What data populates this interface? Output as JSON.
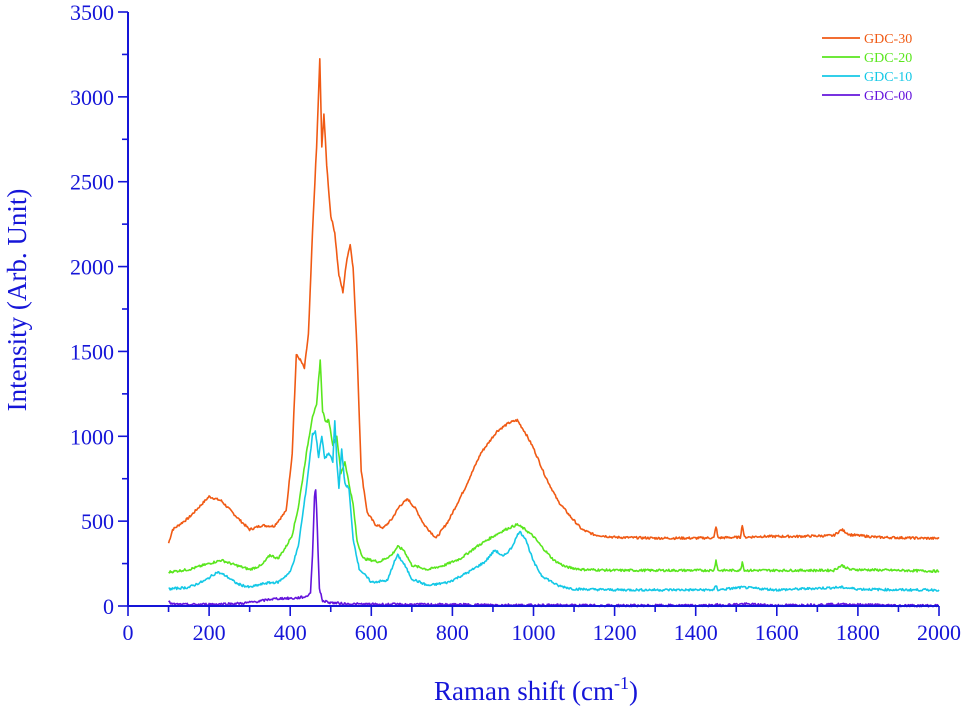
{
  "chart_data": {
    "type": "line",
    "xlabel": "Raman shift (cm",
    "xlabel_sup": "-1",
    "xlabel_close": ")",
    "ylabel": "Intensity (Arb. Unit)",
    "xlim": [
      0,
      2000
    ],
    "ylim": [
      0,
      3500
    ],
    "x_ticks": [
      0,
      200,
      400,
      600,
      800,
      1000,
      1200,
      1400,
      1600,
      1800,
      2000
    ],
    "y_ticks": [
      0,
      500,
      1000,
      1500,
      2000,
      2500,
      3000,
      3500
    ],
    "grid": false,
    "legend_position": "top-right",
    "axis_color": "#1515d8",
    "series": [
      {
        "name": "GDC-30",
        "color": "#f05a14",
        "points": [
          [
            100,
            370
          ],
          [
            110,
            450
          ],
          [
            150,
            520
          ],
          [
            200,
            645
          ],
          [
            230,
            620
          ],
          [
            270,
            520
          ],
          [
            300,
            450
          ],
          [
            330,
            475
          ],
          [
            360,
            470
          ],
          [
            390,
            560
          ],
          [
            405,
            900
          ],
          [
            415,
            1480
          ],
          [
            425,
            1450
          ],
          [
            435,
            1400
          ],
          [
            445,
            1600
          ],
          [
            455,
            2200
          ],
          [
            465,
            2700
          ],
          [
            473,
            3220
          ],
          [
            478,
            2700
          ],
          [
            483,
            2900
          ],
          [
            490,
            2600
          ],
          [
            500,
            2300
          ],
          [
            510,
            2200
          ],
          [
            520,
            1950
          ],
          [
            530,
            1850
          ],
          [
            540,
            2050
          ],
          [
            548,
            2130
          ],
          [
            555,
            2000
          ],
          [
            565,
            1500
          ],
          [
            575,
            800
          ],
          [
            590,
            550
          ],
          [
            610,
            480
          ],
          [
            630,
            460
          ],
          [
            650,
            510
          ],
          [
            670,
            590
          ],
          [
            690,
            630
          ],
          [
            710,
            570
          ],
          [
            730,
            480
          ],
          [
            760,
            400
          ],
          [
            790,
            500
          ],
          [
            830,
            690
          ],
          [
            870,
            900
          ],
          [
            910,
            1030
          ],
          [
            940,
            1080
          ],
          [
            960,
            1095
          ],
          [
            980,
            1020
          ],
          [
            1000,
            930
          ],
          [
            1030,
            760
          ],
          [
            1060,
            620
          ],
          [
            1090,
            530
          ],
          [
            1120,
            450
          ],
          [
            1150,
            420
          ],
          [
            1200,
            405
          ],
          [
            1300,
            400
          ],
          [
            1400,
            400
          ],
          [
            1445,
            402
          ],
          [
            1450,
            470
          ],
          [
            1455,
            402
          ],
          [
            1510,
            405
          ],
          [
            1515,
            480
          ],
          [
            1520,
            405
          ],
          [
            1560,
            410
          ],
          [
            1650,
            410
          ],
          [
            1740,
            415
          ],
          [
            1760,
            450
          ],
          [
            1780,
            420
          ],
          [
            1850,
            405
          ],
          [
            1950,
            400
          ],
          [
            2000,
            398
          ]
        ]
      },
      {
        "name": "GDC-20",
        "color": "#5ae61e",
        "points": [
          [
            100,
            200
          ],
          [
            150,
            215
          ],
          [
            200,
            250
          ],
          [
            230,
            270
          ],
          [
            260,
            245
          ],
          [
            300,
            215
          ],
          [
            330,
            240
          ],
          [
            350,
            300
          ],
          [
            370,
            280
          ],
          [
            390,
            350
          ],
          [
            405,
            420
          ],
          [
            420,
            580
          ],
          [
            440,
            900
          ],
          [
            455,
            1120
          ],
          [
            465,
            1180
          ],
          [
            474,
            1450
          ],
          [
            480,
            1150
          ],
          [
            488,
            1080
          ],
          [
            495,
            1100
          ],
          [
            505,
            950
          ],
          [
            515,
            1000
          ],
          [
            525,
            780
          ],
          [
            535,
            850
          ],
          [
            545,
            720
          ],
          [
            555,
            600
          ],
          [
            565,
            380
          ],
          [
            580,
            280
          ],
          [
            620,
            260
          ],
          [
            650,
            300
          ],
          [
            665,
            350
          ],
          [
            680,
            330
          ],
          [
            700,
            240
          ],
          [
            740,
            215
          ],
          [
            780,
            240
          ],
          [
            820,
            280
          ],
          [
            860,
            350
          ],
          [
            900,
            410
          ],
          [
            930,
            450
          ],
          [
            960,
            480
          ],
          [
            980,
            450
          ],
          [
            1000,
            410
          ],
          [
            1020,
            350
          ],
          [
            1050,
            270
          ],
          [
            1080,
            230
          ],
          [
            1120,
            215
          ],
          [
            1200,
            210
          ],
          [
            1300,
            210
          ],
          [
            1445,
            210
          ],
          [
            1450,
            270
          ],
          [
            1455,
            210
          ],
          [
            1510,
            210
          ],
          [
            1515,
            260
          ],
          [
            1520,
            210
          ],
          [
            1600,
            210
          ],
          [
            1740,
            210
          ],
          [
            1760,
            240
          ],
          [
            1780,
            215
          ],
          [
            1900,
            210
          ],
          [
            2000,
            205
          ]
        ]
      },
      {
        "name": "GDC-10",
        "color": "#14c8e6",
        "points": [
          [
            100,
            100
          ],
          [
            150,
            110
          ],
          [
            190,
            150
          ],
          [
            220,
            200
          ],
          [
            240,
            180
          ],
          [
            270,
            130
          ],
          [
            300,
            110
          ],
          [
            340,
            135
          ],
          [
            370,
            140
          ],
          [
            400,
            200
          ],
          [
            420,
            350
          ],
          [
            440,
            700
          ],
          [
            455,
            1010
          ],
          [
            462,
            1030
          ],
          [
            470,
            880
          ],
          [
            478,
            1000
          ],
          [
            485,
            870
          ],
          [
            495,
            900
          ],
          [
            505,
            850
          ],
          [
            510,
            1090
          ],
          [
            515,
            850
          ],
          [
            520,
            700
          ],
          [
            527,
            920
          ],
          [
            535,
            720
          ],
          [
            545,
            690
          ],
          [
            555,
            400
          ],
          [
            570,
            220
          ],
          [
            600,
            140
          ],
          [
            640,
            150
          ],
          [
            655,
            250
          ],
          [
            665,
            300
          ],
          [
            680,
            250
          ],
          [
            700,
            160
          ],
          [
            740,
            120
          ],
          [
            790,
            140
          ],
          [
            840,
            200
          ],
          [
            880,
            260
          ],
          [
            905,
            330
          ],
          [
            925,
            290
          ],
          [
            945,
            340
          ],
          [
            965,
            440
          ],
          [
            980,
            400
          ],
          [
            1000,
            260
          ],
          [
            1020,
            180
          ],
          [
            1060,
            120
          ],
          [
            1100,
            100
          ],
          [
            1200,
            95
          ],
          [
            1300,
            95
          ],
          [
            1445,
            95
          ],
          [
            1450,
            120
          ],
          [
            1455,
            95
          ],
          [
            1515,
            110
          ],
          [
            1600,
            95
          ],
          [
            1760,
            110
          ],
          [
            1800,
            100
          ],
          [
            1900,
            95
          ],
          [
            2000,
            95
          ]
        ]
      },
      {
        "name": "GDC-00",
        "color": "#6414dc",
        "points": [
          [
            100,
            25
          ],
          [
            110,
            10
          ],
          [
            150,
            8
          ],
          [
            200,
            10
          ],
          [
            280,
            15
          ],
          [
            330,
            30
          ],
          [
            350,
            40
          ],
          [
            380,
            45
          ],
          [
            410,
            45
          ],
          [
            440,
            55
          ],
          [
            450,
            80
          ],
          [
            455,
            300
          ],
          [
            460,
            650
          ],
          [
            463,
            690
          ],
          [
            467,
            450
          ],
          [
            472,
            100
          ],
          [
            480,
            30
          ],
          [
            500,
            20
          ],
          [
            540,
            12
          ],
          [
            600,
            10
          ],
          [
            800,
            8
          ],
          [
            1000,
            5
          ],
          [
            1200,
            3
          ],
          [
            1445,
            3
          ],
          [
            1450,
            15
          ],
          [
            1455,
            3
          ],
          [
            1515,
            12
          ],
          [
            1600,
            3
          ],
          [
            1760,
            10
          ],
          [
            1900,
            3
          ],
          [
            2000,
            2
          ]
        ]
      }
    ]
  }
}
